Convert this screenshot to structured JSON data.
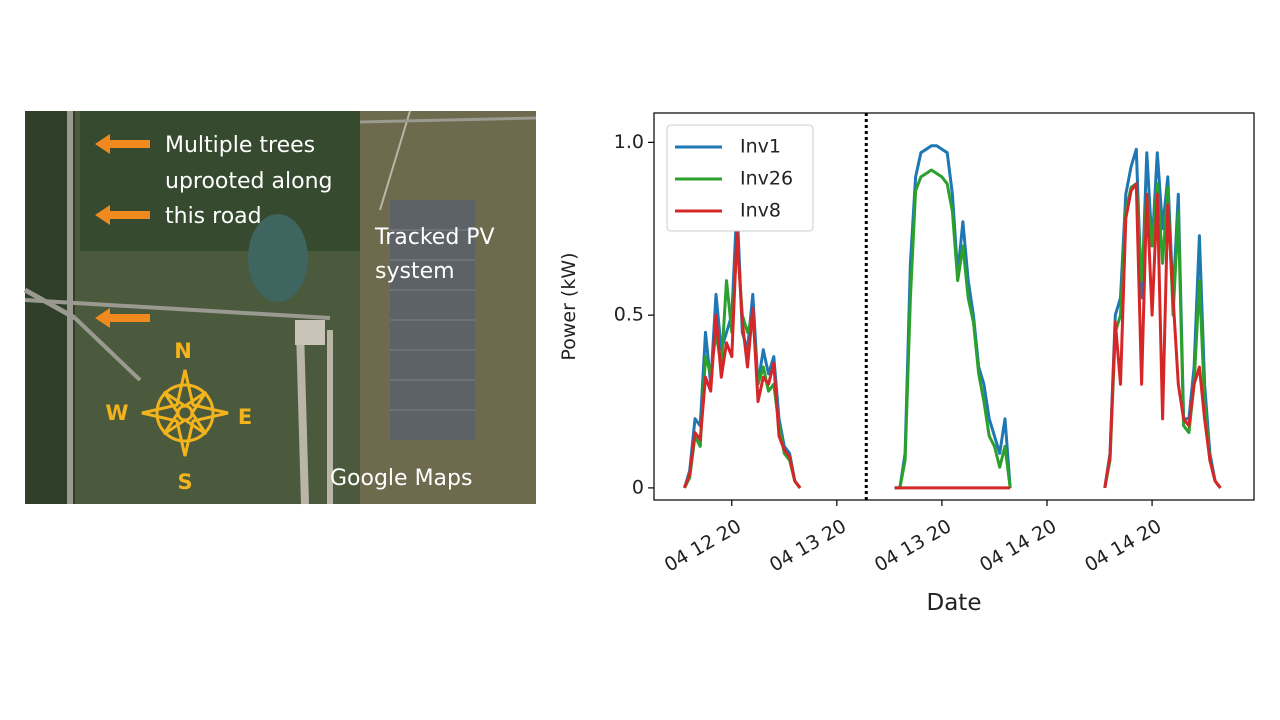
{
  "map": {
    "annotation_lines": [
      "Multiple trees",
      "uprooted along",
      "this road"
    ],
    "pv_label_lines": [
      "Tracked PV",
      "system"
    ],
    "source": "Google Maps",
    "compass": {
      "north": "N",
      "west": "W",
      "east": "E",
      "south": "S"
    }
  },
  "chart_data": {
    "type": "line",
    "xlabel": "Date",
    "ylabel": "Power (kW)",
    "x": [
      0.55,
      0.6,
      0.65,
      0.7,
      0.75,
      0.8,
      0.85,
      0.9,
      0.95,
      1.0,
      1.05,
      1.1,
      1.15,
      1.2,
      1.25,
      1.3,
      1.35,
      1.4,
      1.45,
      1.5,
      1.55,
      1.6,
      1.65,
      2.1,
      2.55,
      2.6,
      2.65,
      2.7,
      2.75,
      2.8,
      2.85,
      2.9,
      2.95,
      3.0,
      3.05,
      3.1,
      3.15,
      3.2,
      3.25,
      3.3,
      3.35,
      3.4,
      3.45,
      3.5,
      3.55,
      3.6,
      3.65,
      4.1,
      4.55,
      4.6,
      4.65,
      4.7,
      4.75,
      4.8,
      4.85,
      4.9,
      4.95,
      5.0,
      5.05,
      5.1,
      5.15,
      5.2,
      5.25,
      5.3,
      5.35,
      5.4,
      5.45,
      5.5,
      5.55,
      5.6,
      5.65
    ],
    "series": [
      {
        "name": "Inv1",
        "color": "#1f77b4",
        "values": [
          0,
          0.05,
          0.2,
          0.18,
          0.45,
          0.3,
          0.56,
          0.4,
          0.45,
          0.5,
          0.82,
          0.45,
          0.4,
          0.56,
          0.3,
          0.4,
          0.33,
          0.38,
          0.2,
          0.12,
          0.1,
          0.02,
          0,
          null,
          0,
          0,
          0.1,
          0.65,
          0.9,
          0.97,
          0.98,
          0.99,
          0.99,
          0.98,
          0.97,
          0.85,
          0.62,
          0.77,
          0.6,
          0.5,
          0.35,
          0.3,
          0.2,
          0.15,
          0.1,
          0.2,
          0,
          null,
          0,
          0.1,
          0.5,
          0.55,
          0.85,
          0.93,
          0.98,
          0.55,
          0.97,
          0.7,
          0.97,
          0.75,
          0.9,
          0.55,
          0.85,
          0.2,
          0.2,
          0.35,
          0.73,
          0.3,
          0.1,
          0.02,
          0
        ]
      },
      {
        "name": "Inv26",
        "color": "#2ca02c",
        "values": [
          0,
          0.03,
          0.15,
          0.12,
          0.38,
          0.33,
          0.45,
          0.35,
          0.6,
          0.45,
          0.72,
          0.5,
          0.45,
          0.5,
          0.3,
          0.35,
          0.28,
          0.3,
          0.18,
          0.1,
          0.08,
          0.02,
          0,
          null,
          0,
          0,
          0.08,
          0.55,
          0.86,
          0.9,
          0.91,
          0.92,
          0.91,
          0.9,
          0.88,
          0.8,
          0.6,
          0.7,
          0.55,
          0.48,
          0.33,
          0.25,
          0.15,
          0.12,
          0.06,
          0.12,
          0,
          null,
          0,
          0.08,
          0.45,
          0.5,
          0.8,
          0.87,
          0.88,
          0.6,
          0.85,
          0.7,
          0.88,
          0.65,
          0.87,
          0.5,
          0.8,
          0.18,
          0.16,
          0.3,
          0.6,
          0.25,
          0.08,
          0.02,
          0
        ]
      },
      {
        "name": "Inv8",
        "color": "#d62728",
        "values": [
          0,
          0.04,
          0.16,
          0.14,
          0.32,
          0.28,
          0.5,
          0.32,
          0.42,
          0.38,
          0.74,
          0.48,
          0.35,
          0.52,
          0.25,
          0.32,
          0.3,
          0.36,
          0.15,
          0.11,
          0.09,
          0.02,
          0,
          null,
          0,
          0,
          0,
          0,
          0,
          0,
          0,
          0,
          0,
          0,
          0,
          0,
          0,
          0,
          0,
          0,
          0,
          0,
          0,
          0,
          0,
          0,
          0,
          null,
          0,
          0.09,
          0.48,
          0.3,
          0.78,
          0.86,
          0.88,
          0.3,
          0.85,
          0.5,
          0.85,
          0.2,
          0.82,
          0.55,
          0.3,
          0.2,
          0.18,
          0.3,
          0.35,
          0.2,
          0.08,
          0.02,
          0
        ]
      }
    ],
    "xlim": [
      0.26,
      5.97
    ],
    "ylim": [
      -0.035,
      1.085
    ],
    "xticks": [
      {
        "value": 1,
        "label": "04 12 20"
      },
      {
        "value": 2,
        "label": "04 13 20"
      },
      {
        "value": 3,
        "label": "04 13 20"
      },
      {
        "value": 4,
        "label": "04 14 20"
      },
      {
        "value": 5,
        "label": "04 14 20"
      }
    ],
    "yticks": [
      0,
      0.5,
      {
        "value": 1.0,
        "label": "1.0"
      }
    ],
    "vline": 2.28,
    "legend": "upper left"
  }
}
